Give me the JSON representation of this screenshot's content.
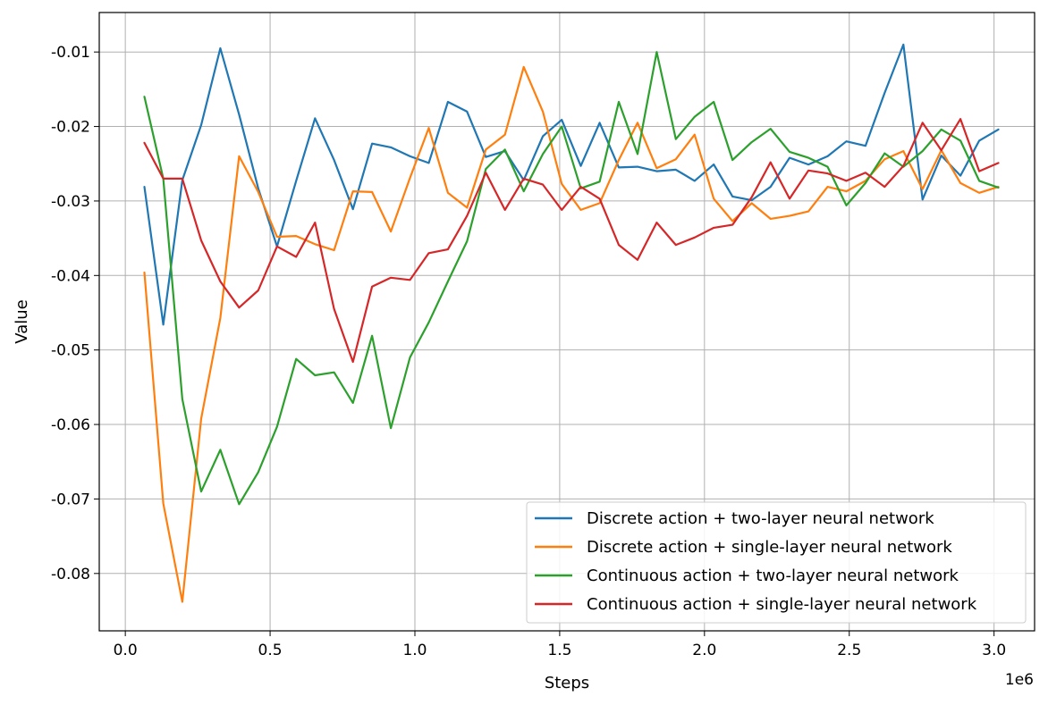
{
  "chart_data": {
    "type": "line",
    "xlabel": "Steps",
    "ylabel": "Value",
    "x_offset_label": "1e6",
    "xlim": [
      -0.09,
      3.14
    ],
    "ylim": [
      -0.0877,
      -0.0047
    ],
    "grid": true,
    "legend_position": "lower right",
    "x_ticks": [
      0.0,
      0.5,
      1.0,
      1.5,
      2.0,
      2.5,
      3.0
    ],
    "x_tick_labels": [
      "0.0",
      "0.5",
      "1.0",
      "1.5",
      "2.0",
      "2.5",
      "3.0"
    ],
    "y_ticks": [
      -0.01,
      -0.02,
      -0.03,
      -0.04,
      -0.05,
      -0.06,
      -0.07,
      -0.08
    ],
    "y_tick_labels": [
      "-0.01",
      "-0.02",
      "-0.03",
      "-0.04",
      "-0.05",
      "-0.06",
      "-0.07",
      "-0.08"
    ],
    "x": [
      0.066,
      0.131,
      0.197,
      0.262,
      0.328,
      0.393,
      0.459,
      0.524,
      0.59,
      0.655,
      0.721,
      0.786,
      0.852,
      0.917,
      0.983,
      1.048,
      1.114,
      1.18,
      1.245,
      1.311,
      1.376,
      1.442,
      1.507,
      1.573,
      1.638,
      1.704,
      1.769,
      1.835,
      1.901,
      1.966,
      2.032,
      2.097,
      2.163,
      2.228,
      2.294,
      2.359,
      2.425,
      2.49,
      2.556,
      2.622,
      2.687,
      2.753,
      2.818,
      2.884,
      2.949,
      3.015
    ],
    "series": [
      {
        "name": "Discrete action + two-layer neural network",
        "color": "#1f77b4",
        "values": [
          -0.0281,
          -0.0466,
          -0.0272,
          -0.0198,
          -0.0095,
          -0.0184,
          -0.0283,
          -0.0361,
          -0.0273,
          -0.0189,
          -0.0245,
          -0.0311,
          -0.0223,
          -0.0228,
          -0.024,
          -0.0249,
          -0.0167,
          -0.018,
          -0.0241,
          -0.0233,
          -0.0272,
          -0.0213,
          -0.0191,
          -0.0253,
          -0.0195,
          -0.0255,
          -0.0254,
          -0.026,
          -0.0258,
          -0.0273,
          -0.0251,
          -0.0294,
          -0.0299,
          -0.0281,
          -0.0242,
          -0.0251,
          -0.024,
          -0.022,
          -0.0226,
          -0.0155,
          -0.009,
          -0.0298,
          -0.0239,
          -0.0266,
          -0.0219,
          -0.0204
        ]
      },
      {
        "name": "Discrete action + single-layer neural network",
        "color": "#ff7f0e",
        "values": [
          -0.0396,
          -0.0706,
          -0.0838,
          -0.0592,
          -0.0457,
          -0.024,
          -0.0288,
          -0.0348,
          -0.0347,
          -0.0358,
          -0.0366,
          -0.0287,
          -0.0288,
          -0.0341,
          -0.0269,
          -0.0202,
          -0.0289,
          -0.0309,
          -0.0231,
          -0.0211,
          -0.012,
          -0.018,
          -0.0277,
          -0.0312,
          -0.0303,
          -0.0245,
          -0.0195,
          -0.0256,
          -0.0244,
          -0.0211,
          -0.0297,
          -0.0327,
          -0.0303,
          -0.0324,
          -0.032,
          -0.0314,
          -0.0281,
          -0.0287,
          -0.0273,
          -0.0244,
          -0.0233,
          -0.0284,
          -0.0232,
          -0.0276,
          -0.0289,
          -0.0281
        ]
      },
      {
        "name": "Continuous action + two-layer neural network",
        "color": "#2ca02c",
        "values": [
          -0.016,
          -0.027,
          -0.0566,
          -0.069,
          -0.0634,
          -0.0707,
          -0.0664,
          -0.0603,
          -0.0512,
          -0.0534,
          -0.053,
          -0.0571,
          -0.0481,
          -0.0605,
          -0.051,
          -0.0463,
          -0.0408,
          -0.0354,
          -0.0257,
          -0.0231,
          -0.0287,
          -0.0237,
          -0.02,
          -0.0283,
          -0.0274,
          -0.0167,
          -0.0237,
          -0.01,
          -0.0217,
          -0.0187,
          -0.0167,
          -0.0245,
          -0.0221,
          -0.0203,
          -0.0234,
          -0.0242,
          -0.0254,
          -0.0306,
          -0.0276,
          -0.0236,
          -0.0254,
          -0.0233,
          -0.0204,
          -0.0219,
          -0.0273,
          -0.0282
        ]
      },
      {
        "name": "Continuous action + single-layer neural network",
        "color": "#d62728",
        "values": [
          -0.0222,
          -0.027,
          -0.027,
          -0.0353,
          -0.0408,
          -0.0443,
          -0.042,
          -0.0361,
          -0.0375,
          -0.0329,
          -0.0445,
          -0.0516,
          -0.0415,
          -0.0403,
          -0.0406,
          -0.037,
          -0.0365,
          -0.032,
          -0.0262,
          -0.0312,
          -0.027,
          -0.0278,
          -0.0312,
          -0.0281,
          -0.0297,
          -0.0359,
          -0.0379,
          -0.0329,
          -0.0359,
          -0.0349,
          -0.0336,
          -0.0332,
          -0.0295,
          -0.0248,
          -0.0297,
          -0.0259,
          -0.0263,
          -0.0273,
          -0.0262,
          -0.0281,
          -0.0253,
          -0.0195,
          -0.0232,
          -0.019,
          -0.026,
          -0.0249
        ]
      }
    ]
  }
}
